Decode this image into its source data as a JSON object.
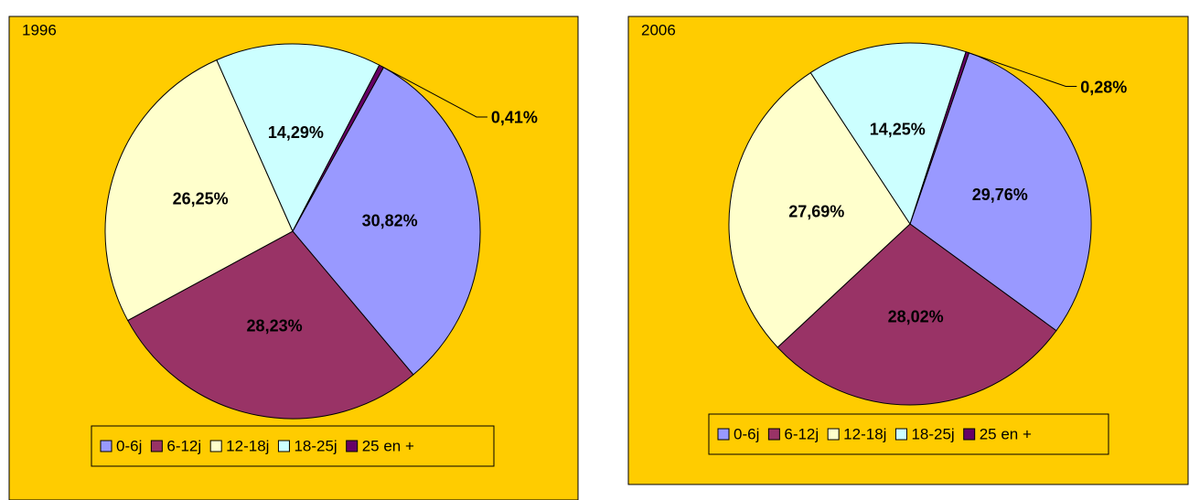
{
  "chart_data": [
    {
      "type": "pie",
      "title": "1996",
      "categories": [
        "0-6j",
        "6-12j",
        "12-18j",
        "18-25j",
        "25 en +"
      ],
      "values": [
        30.82,
        28.23,
        26.25,
        14.29,
        0.41
      ],
      "value_labels": [
        "30,82%",
        "28,23%",
        "26,25%",
        "14,29%",
        "0,41%"
      ],
      "colors": [
        "#9999FF",
        "#993366",
        "#FFFFCC",
        "#CCFFFF",
        "#660066"
      ],
      "legend": "bottom"
    },
    {
      "type": "pie",
      "title": "2006",
      "categories": [
        "0-6j",
        "6-12j",
        "12-18j",
        "18-25j",
        "25 en +"
      ],
      "values": [
        29.76,
        28.02,
        27.69,
        14.25,
        0.28
      ],
      "value_labels": [
        "29,76%",
        "28,02%",
        "27,69%",
        "14,25%",
        "0,28%"
      ],
      "colors": [
        "#9999FF",
        "#993366",
        "#FFFFCC",
        "#CCFFFF",
        "#660066"
      ],
      "legend": "bottom"
    }
  ]
}
